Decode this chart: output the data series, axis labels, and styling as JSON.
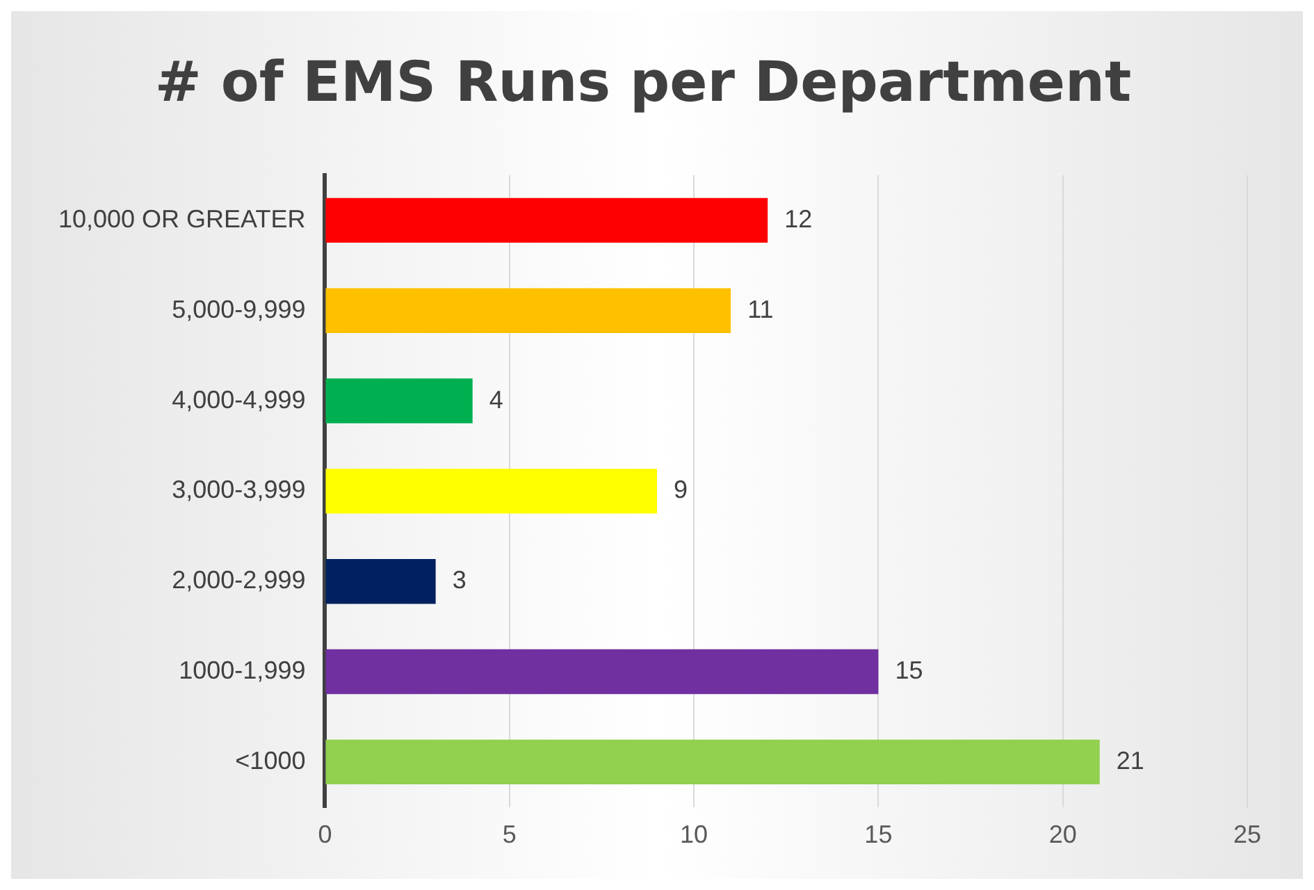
{
  "chart_data": {
    "type": "bar",
    "orientation": "horizontal",
    "title": "# of EMS Runs per Department",
    "categories": [
      "10,000 OR GREATER",
      "5,000-9,999",
      "4,000-4,999",
      "3,000-3,999",
      "2,000-2,999",
      "1000-1,999",
      "<1000"
    ],
    "values": [
      12,
      11,
      4,
      9,
      3,
      15,
      21
    ],
    "colors": [
      "#ff0000",
      "#ffc000",
      "#00b050",
      "#ffff00",
      "#002060",
      "#7030a0",
      "#92d050"
    ],
    "xlim": [
      0,
      25
    ],
    "xticks": [
      0,
      5,
      10,
      15,
      20,
      25
    ],
    "grid": "x",
    "data_labels": true
  }
}
